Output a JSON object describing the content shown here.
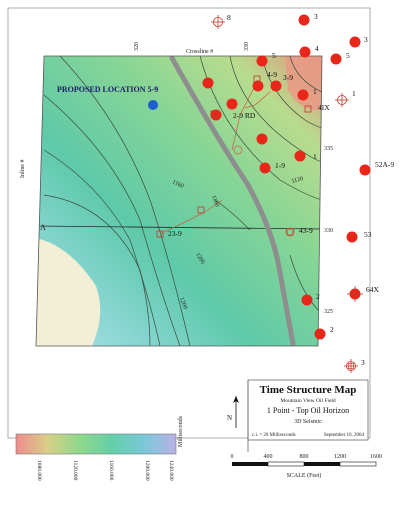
{
  "map": {
    "proposed_label": "PROPOSED LOCATION 5-9",
    "crossline_label": "Crossline #",
    "inline_label": "Inline #",
    "section_label": "A",
    "top_ticks": [
      "320",
      "330"
    ],
    "right_ticks": [
      "335",
      "330",
      "325"
    ],
    "contour_labels": [
      "1160",
      "1120",
      "1200",
      "1160",
      "1200"
    ],
    "wells_inside": [
      {
        "label": "4-9"
      },
      {
        "label": "3-9"
      },
      {
        "label": "2-9 RD"
      },
      {
        "label": "1"
      },
      {
        "label": "1"
      },
      {
        "label": "1-9"
      },
      {
        "label": "23-9"
      },
      {
        "label": "43-9"
      },
      {
        "label": "4IX"
      }
    ],
    "wells_outside": [
      {
        "label": "8"
      },
      {
        "label": "3"
      },
      {
        "label": "5"
      },
      {
        "label": "4"
      },
      {
        "label": "5"
      },
      {
        "label": "3"
      },
      {
        "label": "1"
      },
      {
        "label": "52A-9"
      },
      {
        "label": "53"
      },
      {
        "label": "64X"
      },
      {
        "label": "2"
      },
      {
        "label": "2"
      },
      {
        "label": "3"
      }
    ]
  },
  "title_block": {
    "title": "Time Structure Map",
    "field": "Mountain View Oil Field",
    "horizon": "1 Point - Top Oil Horizon",
    "survey": "3D Seismic",
    "ci_note": "c.i. = 20 Milliseconds",
    "date": "September 10, 2004"
  },
  "north_label": "N",
  "legend": {
    "unit": "Milliseconds",
    "ticks": [
      "1080.000",
      "1120.000",
      "1160.000",
      "1200.000",
      "1240.000"
    ]
  },
  "scale": {
    "ticks": [
      "0",
      "400",
      "800",
      "1200",
      "1600"
    ],
    "label": "SCALE (Feet)"
  },
  "colors": {
    "well_red": "#e8261a",
    "proposed_blue": "#1f5fd0",
    "fault_gray": "#8e8e8e"
  }
}
